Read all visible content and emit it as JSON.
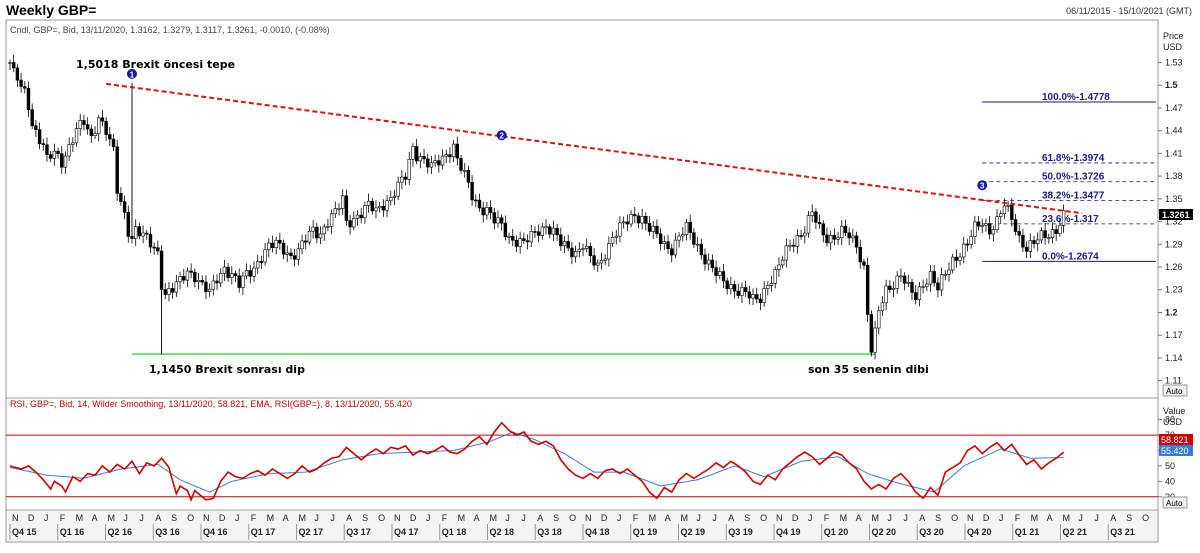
{
  "window": {
    "title": "Weekly GBP=",
    "date_range": "06/11/2015 - 15/10/2021 (GMT)"
  },
  "price_panel": {
    "info": "Cndl, GBP=, Bid, 13/11/2020, 1.3162, 1.3279, 1.3117, 1.3261, -0.0010, (-0.08%)",
    "axis_unit": [
      "Price",
      "USD"
    ],
    "current_price": "1.3261",
    "auto_label": "Auto"
  },
  "rsi_panel": {
    "info": "RSI, GBP=, Bid, 14, Wilder Smoothing, 13/11/2020, 58.821, EMA, RSI(GBP=), 8, 13/11/2020, 55.420",
    "axis_unit": [
      "Value",
      "USD"
    ],
    "rsi_value": "58.821",
    "ema_value": "55.420",
    "auto_label": "Auto",
    "colors": {
      "rsi": "#cc0000",
      "ema": "#3a7bd5",
      "bands": "#cc0000"
    }
  },
  "annotations": {
    "pre_brexit_top": "1,5018 Brexit öncesi tepe",
    "post_brexit_dip": "1,1450 Brexit sonrası dip",
    "low_35y": "son 35 senenin dibi",
    "markers": [
      "1",
      "2",
      "3"
    ]
  },
  "chart_data": {
    "type": "candlestick",
    "price_axis": {
      "ticks": [
        "1.53",
        "1.5",
        "1.47",
        "1.44",
        "1.41",
        "1.38",
        "1.35",
        "1.32",
        "1.29",
        "1.26",
        "1.23",
        "1.2",
        "1.17",
        "1.14",
        "1.11"
      ],
      "bold_ticks": [
        "1.5",
        "1.2"
      ],
      "ylim": [
        1.095,
        1.565
      ]
    },
    "rsi_axis": {
      "ticks": [
        "80",
        "70",
        "60",
        "50",
        "40",
        "30"
      ],
      "ylim": [
        24,
        85
      ],
      "bands": [
        70,
        30
      ]
    },
    "month_labels": [
      "N",
      "D",
      "J",
      "F",
      "M",
      "A",
      "M",
      "J",
      "J",
      "A",
      "S",
      "O",
      "N",
      "D",
      "J",
      "F",
      "M",
      "A",
      "M",
      "J",
      "J",
      "A",
      "S",
      "O",
      "N",
      "D",
      "J",
      "F",
      "M",
      "A",
      "M",
      "J",
      "J",
      "A",
      "S",
      "O",
      "N",
      "D",
      "J",
      "F",
      "M",
      "A",
      "M",
      "J",
      "J",
      "A",
      "S",
      "O",
      "N",
      "D",
      "J",
      "F",
      "M",
      "A",
      "M",
      "J",
      "J",
      "A",
      "S",
      "O",
      "N",
      "D",
      "J",
      "F",
      "M",
      "A",
      "M",
      "J",
      "J",
      "A",
      "S",
      "O"
    ],
    "quarter_labels": [
      "Q4 15",
      "Q1 16",
      "Q2 16",
      "Q3 16",
      "Q4 16",
      "Q1 17",
      "Q2 17",
      "Q3 17",
      "Q4 17",
      "Q1 18",
      "Q2 18",
      "Q3 18",
      "Q4 18",
      "Q1 19",
      "Q2 19",
      "Q3 19",
      "Q4 19",
      "Q1 20",
      "Q2 20",
      "Q3 20",
      "Q4 20",
      "Q1 21",
      "Q2 21",
      "Q3 21"
    ],
    "price_path": [
      [
        0,
        1.53
      ],
      [
        1,
        1.515
      ],
      [
        2,
        1.508
      ],
      [
        3,
        1.495
      ],
      [
        4,
        1.49
      ],
      [
        5,
        1.475
      ],
      [
        6,
        1.45
      ],
      [
        8,
        1.43
      ],
      [
        9,
        1.42
      ],
      [
        10,
        1.4
      ],
      [
        12,
        1.41
      ],
      [
        14,
        1.4
      ],
      [
        16,
        1.42
      ],
      [
        18,
        1.44
      ],
      [
        20,
        1.45
      ],
      [
        22,
        1.43
      ],
      [
        24,
        1.46
      ],
      [
        26,
        1.44
      ],
      [
        28,
        1.41
      ],
      [
        29,
        1.36
      ],
      [
        31,
        1.33
      ],
      [
        32,
        1.31
      ],
      [
        33,
        1.3
      ],
      [
        34,
        1.31
      ],
      [
        36,
        1.3
      ],
      [
        38,
        1.29
      ],
      [
        40,
        1.28
      ],
      [
        41,
        1.24
      ],
      [
        42,
        1.225
      ],
      [
        44,
        1.23
      ],
      [
        46,
        1.24
      ],
      [
        48,
        1.255
      ],
      [
        50,
        1.25
      ],
      [
        52,
        1.235
      ],
      [
        54,
        1.225
      ],
      [
        56,
        1.245
      ],
      [
        58,
        1.26
      ],
      [
        60,
        1.25
      ],
      [
        62,
        1.235
      ],
      [
        64,
        1.25
      ],
      [
        66,
        1.26
      ],
      [
        68,
        1.275
      ],
      [
        70,
        1.285
      ],
      [
        72,
        1.29
      ],
      [
        74,
        1.285
      ],
      [
        76,
        1.275
      ],
      [
        78,
        1.28
      ],
      [
        80,
        1.295
      ],
      [
        82,
        1.31
      ],
      [
        84,
        1.305
      ],
      [
        86,
        1.32
      ],
      [
        88,
        1.33
      ],
      [
        90,
        1.35
      ],
      [
        91,
        1.32
      ],
      [
        93,
        1.325
      ],
      [
        95,
        1.33
      ],
      [
        97,
        1.34
      ],
      [
        99,
        1.335
      ],
      [
        101,
        1.345
      ],
      [
        103,
        1.35
      ],
      [
        105,
        1.365
      ],
      [
        107,
        1.38
      ],
      [
        108,
        1.4
      ],
      [
        109,
        1.42
      ],
      [
        110,
        1.41
      ],
      [
        112,
        1.4
      ],
      [
        114,
        1.39
      ],
      [
        116,
        1.4
      ],
      [
        118,
        1.41
      ],
      [
        120,
        1.42
      ],
      [
        121,
        1.4
      ],
      [
        123,
        1.38
      ],
      [
        125,
        1.355
      ],
      [
        127,
        1.34
      ],
      [
        129,
        1.335
      ],
      [
        131,
        1.32
      ],
      [
        133,
        1.315
      ],
      [
        135,
        1.3
      ],
      [
        137,
        1.295
      ],
      [
        139,
        1.29
      ],
      [
        141,
        1.3
      ],
      [
        143,
        1.31
      ],
      [
        145,
        1.315
      ],
      [
        147,
        1.305
      ],
      [
        149,
        1.29
      ],
      [
        151,
        1.285
      ],
      [
        153,
        1.28
      ],
      [
        155,
        1.29
      ],
      [
        157,
        1.27
      ],
      [
        159,
        1.26
      ],
      [
        161,
        1.28
      ],
      [
        163,
        1.3
      ],
      [
        165,
        1.31
      ],
      [
        167,
        1.32
      ],
      [
        169,
        1.33
      ],
      [
        171,
        1.325
      ],
      [
        173,
        1.31
      ],
      [
        175,
        1.3
      ],
      [
        177,
        1.29
      ],
      [
        179,
        1.285
      ],
      [
        181,
        1.3
      ],
      [
        183,
        1.31
      ],
      [
        185,
        1.295
      ],
      [
        187,
        1.28
      ],
      [
        189,
        1.265
      ],
      [
        191,
        1.25
      ],
      [
        193,
        1.24
      ],
      [
        195,
        1.235
      ],
      [
        197,
        1.23
      ],
      [
        199,
        1.225
      ],
      [
        201,
        1.215
      ],
      [
        203,
        1.22
      ],
      [
        205,
        1.24
      ],
      [
        207,
        1.25
      ],
      [
        209,
        1.27
      ],
      [
        211,
        1.29
      ],
      [
        213,
        1.3
      ],
      [
        215,
        1.31
      ],
      [
        217,
        1.33
      ],
      [
        219,
        1.31
      ],
      [
        221,
        1.3
      ],
      [
        223,
        1.3
      ],
      [
        225,
        1.305
      ],
      [
        227,
        1.3
      ],
      [
        229,
        1.29
      ],
      [
        231,
        1.26
      ],
      [
        232,
        1.2
      ],
      [
        233,
        1.15
      ],
      [
        234,
        1.17
      ],
      [
        235,
        1.2
      ],
      [
        237,
        1.23
      ],
      [
        239,
        1.24
      ],
      [
        241,
        1.25
      ],
      [
        243,
        1.23
      ],
      [
        245,
        1.22
      ],
      [
        247,
        1.24
      ],
      [
        249,
        1.25
      ],
      [
        251,
        1.23
      ],
      [
        253,
        1.25
      ],
      [
        255,
        1.27
      ],
      [
        257,
        1.28
      ],
      [
        259,
        1.29
      ],
      [
        261,
        1.31
      ],
      [
        263,
        1.32
      ],
      [
        265,
        1.31
      ],
      [
        267,
        1.32
      ],
      [
        269,
        1.34
      ],
      [
        271,
        1.325
      ],
      [
        273,
        1.3
      ],
      [
        275,
        1.285
      ],
      [
        277,
        1.29
      ],
      [
        279,
        1.3
      ],
      [
        281,
        1.305
      ],
      [
        283,
        1.31
      ],
      [
        285,
        1.3261
      ]
    ],
    "rsi_path": [
      [
        0,
        50
      ],
      [
        3,
        48
      ],
      [
        5,
        50
      ],
      [
        7,
        46
      ],
      [
        9,
        41
      ],
      [
        11,
        35
      ],
      [
        12,
        40
      ],
      [
        14,
        37
      ],
      [
        15,
        33
      ],
      [
        17,
        43
      ],
      [
        19,
        40
      ],
      [
        21,
        45
      ],
      [
        23,
        44
      ],
      [
        25,
        50
      ],
      [
        27,
        46
      ],
      [
        29,
        51
      ],
      [
        31,
        48
      ],
      [
        33,
        53
      ],
      [
        35,
        45
      ],
      [
        37,
        52
      ],
      [
        39,
        50
      ],
      [
        41,
        55
      ],
      [
        43,
        49
      ],
      [
        44,
        40
      ],
      [
        45,
        32
      ],
      [
        46,
        37
      ],
      [
        48,
        34
      ],
      [
        49,
        28
      ],
      [
        50,
        34
      ],
      [
        52,
        30
      ],
      [
        53,
        28
      ],
      [
        55,
        29
      ],
      [
        57,
        40
      ],
      [
        59,
        46
      ],
      [
        61,
        43
      ],
      [
        63,
        42
      ],
      [
        65,
        45
      ],
      [
        67,
        47
      ],
      [
        69,
        44
      ],
      [
        71,
        48
      ],
      [
        73,
        45
      ],
      [
        75,
        42
      ],
      [
        77,
        45
      ],
      [
        79,
        50
      ],
      [
        81,
        46
      ],
      [
        83,
        48
      ],
      [
        85,
        52
      ],
      [
        87,
        55
      ],
      [
        89,
        56
      ],
      [
        91,
        62
      ],
      [
        93,
        58
      ],
      [
        95,
        54
      ],
      [
        97,
        58
      ],
      [
        99,
        61
      ],
      [
        101,
        58
      ],
      [
        103,
        62
      ],
      [
        105,
        61
      ],
      [
        107,
        63
      ],
      [
        109,
        57
      ],
      [
        111,
        60
      ],
      [
        113,
        58
      ],
      [
        115,
        60
      ],
      [
        117,
        63
      ],
      [
        119,
        59
      ],
      [
        121,
        58
      ],
      [
        123,
        61
      ],
      [
        125,
        66
      ],
      [
        127,
        69
      ],
      [
        129,
        64
      ],
      [
        131,
        72
      ],
      [
        133,
        78
      ],
      [
        135,
        73
      ],
      [
        137,
        70
      ],
      [
        139,
        72
      ],
      [
        141,
        66
      ],
      [
        143,
        64
      ],
      [
        145,
        66
      ],
      [
        147,
        63
      ],
      [
        149,
        54
      ],
      [
        151,
        48
      ],
      [
        153,
        44
      ],
      [
        155,
        42
      ],
      [
        157,
        45
      ],
      [
        159,
        42
      ],
      [
        161,
        47
      ],
      [
        163,
        48
      ],
      [
        165,
        45
      ],
      [
        167,
        48
      ],
      [
        169,
        44
      ],
      [
        171,
        40
      ],
      [
        173,
        33
      ],
      [
        175,
        29
      ],
      [
        177,
        36
      ],
      [
        179,
        33
      ],
      [
        181,
        41
      ],
      [
        183,
        45
      ],
      [
        185,
        42
      ],
      [
        187,
        45
      ],
      [
        189,
        48
      ],
      [
        191,
        52
      ],
      [
        193,
        49
      ],
      [
        195,
        53
      ],
      [
        197,
        50
      ],
      [
        199,
        46
      ],
      [
        201,
        40
      ],
      [
        203,
        38
      ],
      [
        205,
        44
      ],
      [
        207,
        41
      ],
      [
        209,
        48
      ],
      [
        211,
        52
      ],
      [
        213,
        56
      ],
      [
        215,
        59
      ],
      [
        217,
        56
      ],
      [
        219,
        51
      ],
      [
        221,
        55
      ],
      [
        223,
        59
      ],
      [
        225,
        57
      ],
      [
        227,
        52
      ],
      [
        229,
        48
      ],
      [
        231,
        40
      ],
      [
        233,
        35
      ],
      [
        235,
        38
      ],
      [
        237,
        35
      ],
      [
        239,
        42
      ],
      [
        241,
        45
      ],
      [
        243,
        40
      ],
      [
        245,
        33
      ],
      [
        247,
        29
      ],
      [
        249,
        36
      ],
      [
        251,
        31
      ],
      [
        253,
        46
      ],
      [
        255,
        49
      ],
      [
        257,
        52
      ],
      [
        259,
        60
      ],
      [
        261,
        63
      ],
      [
        263,
        58
      ],
      [
        265,
        62
      ],
      [
        267,
        65
      ],
      [
        269,
        60
      ],
      [
        271,
        64
      ],
      [
        273,
        57
      ],
      [
        275,
        51
      ],
      [
        277,
        54
      ],
      [
        279,
        48
      ],
      [
        281,
        52
      ],
      [
        283,
        55
      ],
      [
        285,
        58.821
      ]
    ],
    "ema_path": [
      [
        0,
        49
      ],
      [
        10,
        44
      ],
      [
        20,
        42
      ],
      [
        30,
        48
      ],
      [
        40,
        51
      ],
      [
        46,
        41
      ],
      [
        54,
        33
      ],
      [
        60,
        40
      ],
      [
        70,
        45
      ],
      [
        80,
        46
      ],
      [
        90,
        54
      ],
      [
        100,
        58
      ],
      [
        110,
        59
      ],
      [
        120,
        60
      ],
      [
        130,
        66
      ],
      [
        136,
        72
      ],
      [
        142,
        67
      ],
      [
        150,
        58
      ],
      [
        158,
        46
      ],
      [
        166,
        46
      ],
      [
        176,
        37
      ],
      [
        186,
        41
      ],
      [
        196,
        50
      ],
      [
        204,
        43
      ],
      [
        214,
        53
      ],
      [
        224,
        56
      ],
      [
        232,
        45
      ],
      [
        240,
        39
      ],
      [
        250,
        33
      ],
      [
        258,
        50
      ],
      [
        268,
        61
      ],
      [
        276,
        55
      ],
      [
        285,
        55.42
      ]
    ],
    "trendline": [
      [
        26,
        1.5018
      ],
      [
        290,
        1.331
      ]
    ],
    "support_line": [
      [
        33,
        1.145
      ],
      [
        234,
        1.145
      ]
    ],
    "fibonacci": [
      {
        "label": "100.0%-1.4778",
        "value": 1.4778
      },
      {
        "label": "61.8%-1.3974",
        "value": 1.3974
      },
      {
        "label": "50.0%-1.3726",
        "value": 1.3726
      },
      {
        "label": "38.2%-1.3477",
        "value": 1.3477
      },
      {
        "label": "23.6%-1.317",
        "value": 1.317
      },
      {
        "label": "0.0%-1.2674",
        "value": 1.2674
      }
    ],
    "marker_points": [
      [
        33,
        1.515
      ],
      [
        133,
        1.434
      ],
      [
        263,
        1.368
      ]
    ]
  }
}
